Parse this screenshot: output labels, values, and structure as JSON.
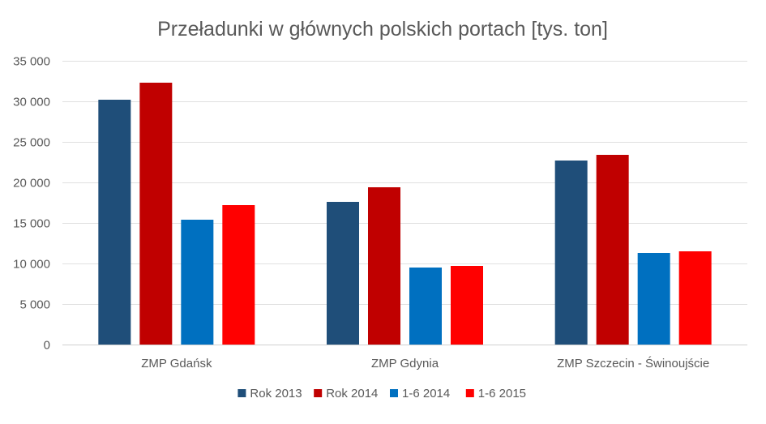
{
  "chart_data": {
    "type": "bar",
    "title": "Przeładunki w głównych polskich portach [tys. ton]",
    "xlabel": "",
    "ylabel": "",
    "categories": [
      "ZMP Gdańsk",
      "ZMP Gdynia",
      "ZMP Szczecin - Świnoujście"
    ],
    "series": [
      {
        "name": "Rok 2013",
        "color": "#1f4e79",
        "values": [
          30200,
          17600,
          22700
        ]
      },
      {
        "name": "Rok 2014",
        "color": "#c00000",
        "values": [
          32300,
          19400,
          23400
        ]
      },
      {
        "name": "1-6 2014",
        "color": "#0070c0",
        "values": [
          15400,
          9500,
          11300
        ]
      },
      {
        "name": "1-6 2015",
        "color": "#ff0000",
        "values": [
          17200,
          9700,
          11500
        ]
      }
    ],
    "ylim": [
      0,
      35000
    ],
    "yticks": [
      0,
      5000,
      10000,
      15000,
      20000,
      25000,
      30000,
      35000
    ],
    "ytick_labels": [
      "0",
      "5 000",
      "10 000",
      "15 000",
      "20 000",
      "25 000",
      "30 000",
      "35 000"
    ],
    "grid": true,
    "legend_position": "bottom"
  }
}
